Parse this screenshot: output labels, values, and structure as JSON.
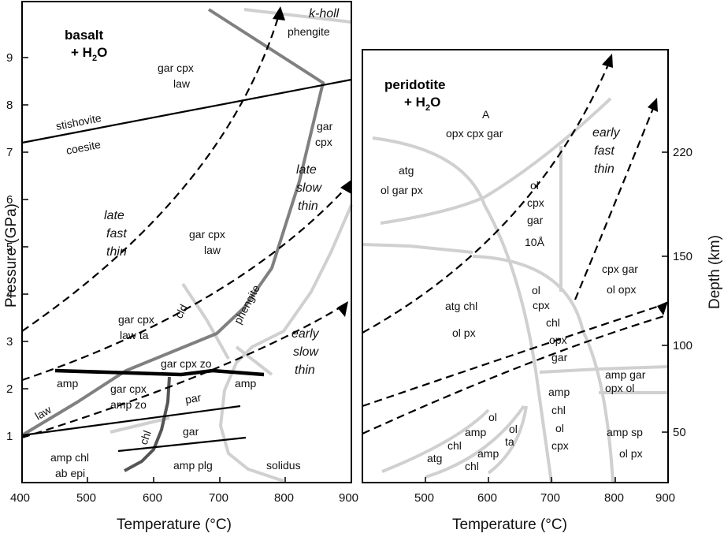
{
  "left_panel": {
    "title_line1": "basalt",
    "title_line2": "+ H",
    "title_sub": "2",
    "title_tail": "O",
    "x_axis_label": "Temperature (°C)",
    "y_axis_label": "Pressure (GPa)",
    "x_ticks": [
      "400",
      "500",
      "600",
      "700",
      "800",
      "900"
    ],
    "y_ticks": [
      "1",
      "2",
      "3",
      "4",
      "5",
      "6",
      "7",
      "8",
      "9"
    ],
    "labels": {
      "k_holl": "k-holl",
      "phengite_top": "phengite",
      "gar_cpx_law_top_1": "gar cpx",
      "gar_cpx_law_top_2": "law",
      "stishovite": "stishovite",
      "coesite": "coesite",
      "gar_cpx_right_1": "gar",
      "gar_cpx_right_2": "cpx",
      "late_slow_thin_1": "late",
      "late_slow_thin_2": "slow",
      "late_slow_thin_3": "thin",
      "late_fast_thin_1": "late",
      "late_fast_thin_2": "fast",
      "late_fast_thin_3": "thin",
      "gar_cpx_law_mid_1": "gar cpx",
      "gar_cpx_law_mid_2": "law",
      "phengite_mid": "phengite",
      "gar_cpx_law_ta_1": "gar cpx",
      "gar_cpx_law_ta_2": "law  ta",
      "cld": "cld",
      "gar_cpx_zo": "gar cpx zo",
      "early_slow_thin_1": "early",
      "early_slow_thin_2": "slow",
      "early_slow_thin_3": "thin",
      "amp_left": "amp",
      "amp_right": "amp",
      "gar_cpx_amp_zo_1": "gar cpx",
      "gar_cpx_amp_zo_2": "amp zo",
      "par": "par",
      "law": "law",
      "chl": "chl",
      "gar_low": "gar",
      "amp_chl_ab_epi_1": "amp chl",
      "amp_chl_ab_epi_2": "ab epi",
      "amp_plg": "amp plg",
      "solidus": "solidus"
    }
  },
  "right_panel": {
    "title_line1": "peridotite",
    "title_line2": "+ H",
    "title_sub": "2",
    "title_tail": "O",
    "x_axis_label": "Temperature (°C)",
    "y_axis_label": "Depth (km)",
    "x_ticks": [
      "500",
      "600",
      "700",
      "800",
      "900"
    ],
    "depth_ticks": [
      "50",
      "100",
      "150",
      "220"
    ],
    "labels": {
      "A": "A",
      "opx_cpx_gar": "opx  cpx  gar",
      "early_fast_thin_1": "early",
      "early_fast_thin_2": "fast",
      "early_fast_thin_3": "thin",
      "atg": "atg",
      "ol_gar_px": "ol  gar  px",
      "ol_cpx_gar_10A_1": "ol",
      "ol_cpx_gar_10A_2": "cpx",
      "ol_cpx_gar_10A_3": "gar",
      "ol_cpx_gar_10A_4": "10Å",
      "cpx_gar": "cpx  gar",
      "ol_opx": "ol  opx",
      "atg_chl": "atg  chl",
      "ol_px": "ol  px",
      "ol_cpx_chl_1": "ol",
      "ol_cpx_chl_2": "cpx",
      "ol_cpx_chl_3": "chl",
      "ol_cpx_chl_4": "opx",
      "ol_cpx_chl_5": "gar",
      "amp_gar": "amp  gar",
      "opx_ol": "opx    ol",
      "amp_chl_ol_cpx_1": "amp",
      "amp_chl_ol_cpx_2": "chl",
      "amp_chl_ol_cpx_3": "ol",
      "amp_chl_ol_cpx_4": "cpx",
      "amp_sp": "amp  sp",
      "ol_px_low": "ol  px",
      "ol_small": "ol",
      "amp_small": "amp",
      "ol_ta_1": "ol",
      "ol_ta_2": "ta",
      "chl_small": "chl",
      "amp_small2": "amp",
      "atg_small": "atg",
      "chl_small2": "chl"
    }
  },
  "colors": {
    "black": "#000000",
    "dark_grey": "#555555",
    "mid_grey": "#808080",
    "light_grey": "#d0d0d0"
  }
}
